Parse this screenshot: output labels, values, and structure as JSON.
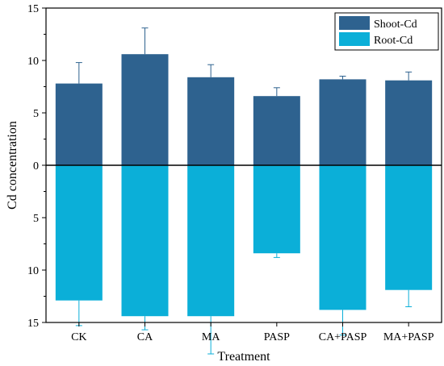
{
  "chart_data": {
    "type": "bar",
    "title": "",
    "xlabel": "Treatment",
    "ylabel": "Cd concentration",
    "categories": [
      "CK",
      "CA",
      "MA",
      "PASP",
      "CA+PASP",
      "MA+PASP"
    ],
    "y_ticks": [
      15,
      10,
      5,
      0,
      5,
      10,
      15
    ],
    "ylim": [
      -15,
      15
    ],
    "y_axis_note": "Shoot-Cd plotted above the zero line, Root-Cd plotted below it; tick labels show absolute values",
    "series": [
      {
        "name": "Shoot-Cd",
        "color": "#2e628f",
        "direction": "up",
        "values": [
          7.8,
          10.6,
          8.4,
          6.6,
          8.2,
          8.1
        ],
        "errors": [
          2.0,
          2.5,
          1.2,
          0.8,
          0.3,
          0.8
        ]
      },
      {
        "name": "Root-Cd",
        "color": "#0bafd8",
        "direction": "down",
        "values": [
          12.9,
          14.4,
          14.4,
          8.4,
          13.8,
          11.9
        ],
        "errors": [
          2.4,
          1.3,
          3.6,
          0.4,
          2.4,
          1.6
        ]
      }
    ],
    "zero_line": true,
    "grid": false,
    "legend_position": "top-right"
  }
}
